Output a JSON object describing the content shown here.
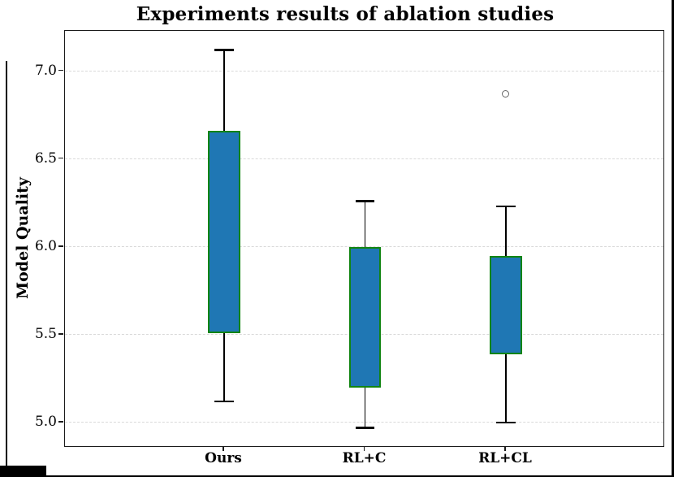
{
  "figure": {
    "frame_color": "#000000",
    "background": "#ffffff"
  },
  "chart_data": {
    "type": "boxplot",
    "title": "Experiments results of ablation studies",
    "ylabel": "Model Quality",
    "xlabel": "",
    "categories": [
      "Ours",
      "RL+C",
      "RL+CL"
    ],
    "series": [
      {
        "label": "Ours",
        "whisker_low": 5.12,
        "q1": 5.51,
        "q3": 6.66,
        "whisker_high": 7.12,
        "outliers": []
      },
      {
        "label": "RL+C",
        "whisker_low": 4.97,
        "q1": 5.2,
        "q3": 6.0,
        "whisker_high": 6.26,
        "outliers": []
      },
      {
        "label": "RL+CL",
        "whisker_low": 5.0,
        "q1": 5.39,
        "q3": 5.95,
        "whisker_high": 6.23,
        "outliers": [
          6.87
        ]
      }
    ],
    "median_visible": false,
    "y_ticks": [
      5.0,
      5.5,
      6.0,
      6.5,
      7.0
    ],
    "ylim": [
      4.857,
      7.229
    ],
    "positions": [
      1,
      2,
      3
    ],
    "xlim": [
      -0.13,
      4.13
    ],
    "box_width": 0.23,
    "cap_width": 0.135,
    "grid": "horizontal-dashed",
    "legend": "none",
    "colors": {
      "box_fill": "#1f77b4",
      "box_edge": "#118511",
      "whisker": "#000000",
      "outlier_edge": "#666666",
      "grid": "#d9d9d9",
      "spine": "#1a1a1a",
      "text": "#000000"
    }
  }
}
